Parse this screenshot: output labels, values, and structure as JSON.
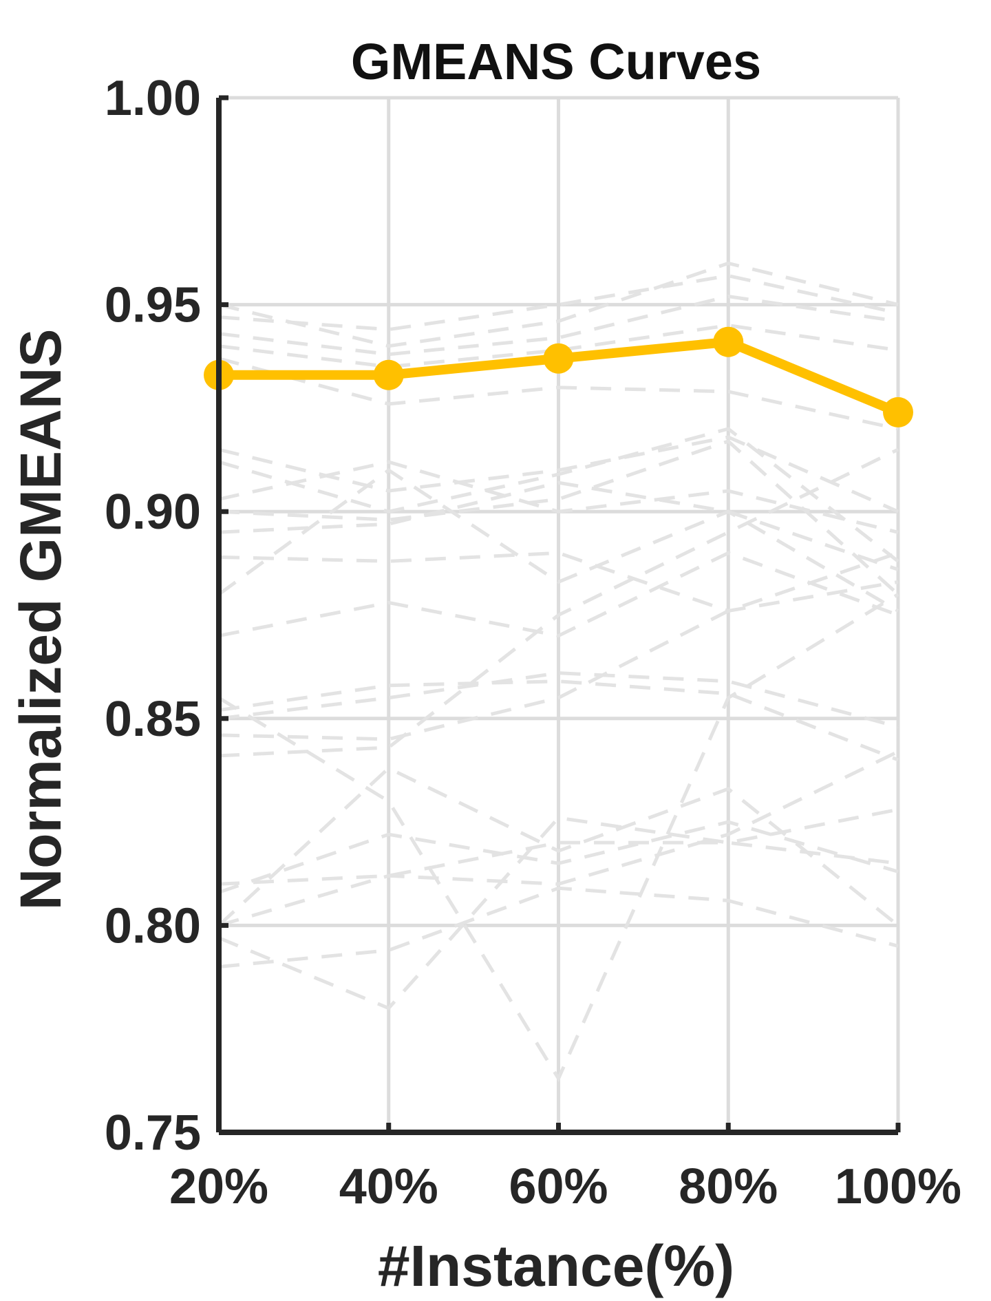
{
  "chart_data": {
    "type": "line",
    "title": "GMEANS Curves",
    "xlabel": "#Instance(%)",
    "ylabel": "Normalized GMEANS",
    "categories": [
      "20%",
      "40%",
      "60%",
      "80%",
      "100%"
    ],
    "ylim": [
      0.75,
      1.0
    ],
    "yticks": [
      "0.75",
      "0.80",
      "0.85",
      "0.90",
      "0.95",
      "1.00"
    ],
    "grid": true,
    "highlight": {
      "color": "#ffc000",
      "style": "solid",
      "marker": "circle",
      "values": [
        0.933,
        0.933,
        0.937,
        0.941,
        0.924
      ]
    },
    "background_series": {
      "color": "#e3e3e3",
      "style": "dashed",
      "series": [
        {
          "values": [
            0.95,
            0.94,
            0.946,
            0.96,
            0.95
          ]
        },
        {
          "values": [
            0.947,
            0.944,
            0.95,
            0.957,
            0.948
          ]
        },
        {
          "values": [
            0.943,
            0.938,
            0.942,
            0.952,
            0.946
          ]
        },
        {
          "values": [
            0.94,
            0.935,
            0.939,
            0.945,
            0.939
          ]
        },
        {
          "values": [
            0.937,
            0.926,
            0.93,
            0.929,
            0.92
          ]
        },
        {
          "values": [
            0.915,
            0.905,
            0.91,
            0.918,
            0.9
          ]
        },
        {
          "values": [
            0.912,
            0.9,
            0.909,
            0.92,
            0.888
          ]
        },
        {
          "values": [
            0.903,
            0.912,
            0.9,
            0.905,
            0.895
          ]
        },
        {
          "values": [
            0.9,
            0.898,
            0.903,
            0.917,
            0.88
          ]
        },
        {
          "values": [
            0.895,
            0.897,
            0.907,
            0.9,
            0.886
          ]
        },
        {
          "values": [
            0.889,
            0.888,
            0.89,
            0.876,
            0.883
          ]
        },
        {
          "values": [
            0.88,
            0.91,
            0.883,
            0.9,
            0.876
          ]
        },
        {
          "values": [
            0.87,
            0.878,
            0.87,
            0.89,
            0.875
          ]
        },
        {
          "values": [
            0.852,
            0.858,
            0.859,
            0.856,
            0.84
          ]
        },
        {
          "values": [
            0.85,
            0.855,
            0.861,
            0.859,
            0.848
          ]
        },
        {
          "values": [
            0.846,
            0.845,
            0.855,
            0.876,
            0.89
          ]
        },
        {
          "values": [
            0.841,
            0.843,
            0.875,
            0.895,
            0.915
          ]
        },
        {
          "values": [
            0.81,
            0.812,
            0.82,
            0.82,
            0.815
          ]
        },
        {
          "values": [
            0.808,
            0.822,
            0.815,
            0.825,
            0.813
          ]
        },
        {
          "values": [
            0.8,
            0.838,
            0.818,
            0.833,
            0.8
          ]
        },
        {
          "values": [
            0.797,
            0.78,
            0.826,
            0.82,
            0.828
          ]
        },
        {
          "values": [
            0.79,
            0.794,
            0.809,
            0.806,
            0.795
          ]
        },
        {
          "values": [
            0.8,
            0.812,
            0.81,
            0.822,
            0.842
          ]
        },
        {
          "values": [
            0.855,
            0.83,
            0.763,
            0.855,
            0.88
          ]
        }
      ]
    }
  }
}
